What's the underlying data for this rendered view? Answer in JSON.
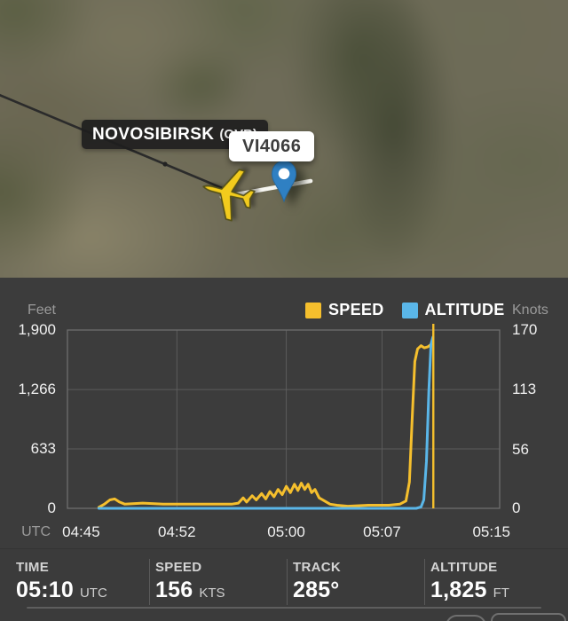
{
  "map": {
    "airport_label": {
      "name": "NOVOSIBIRSK",
      "code": "(OVB)"
    },
    "callsign_label": "VI4066",
    "icons": {
      "aircraft": "yellow-airplane-icon",
      "position_pin": "blue-map-pin-icon"
    },
    "colors": {
      "aircraft_yellow": "#f2cb1d",
      "pin_blue": "#2f80c3",
      "trail_dark": "#2b2b2b",
      "runway_white": "#f7f7f2"
    }
  },
  "chart_data": {
    "type": "line",
    "title": "",
    "x_axis": {
      "title": "UTC",
      "tick_labels": [
        "04:45",
        "04:52",
        "05:00",
        "05:07",
        "05:15"
      ],
      "tick_minutes": [
        0,
        7,
        15,
        22,
        30
      ]
    },
    "x_domain_minutes": [
      -1,
      30.6
    ],
    "left_axis": {
      "title": "Feet",
      "range": [
        0,
        1900
      ],
      "ticks": [
        {
          "value": 1900,
          "label": "1,900"
        },
        {
          "value": 1266,
          "label": "1,266"
        },
        {
          "value": 633,
          "label": "633"
        },
        {
          "value": 0,
          "label": "0"
        }
      ]
    },
    "right_axis": {
      "title": "Knots",
      "range": [
        0,
        170
      ],
      "ticks": [
        {
          "value": 170,
          "label": "170"
        },
        {
          "value": 113,
          "label": "113"
        },
        {
          "value": 56,
          "label": "56"
        },
        {
          "value": 0,
          "label": "0"
        }
      ]
    },
    "grid": {
      "vertical_minutes": [
        7,
        15,
        22
      ],
      "horizontal_feet": [
        633,
        1266
      ]
    },
    "cursor_minute": 25.75,
    "legend_position": "top-right",
    "series": [
      {
        "name": "SPEED",
        "unit": "knots",
        "axis": "right",
        "color": "#f5bf2d",
        "points": [
          [
            1.3,
            1
          ],
          [
            1.7,
            4
          ],
          [
            2.1,
            8
          ],
          [
            2.45,
            9
          ],
          [
            2.8,
            6
          ],
          [
            3.2,
            4
          ],
          [
            4.5,
            5
          ],
          [
            6,
            4
          ],
          [
            8,
            4
          ],
          [
            10,
            4
          ],
          [
            11,
            4
          ],
          [
            11.5,
            5
          ],
          [
            11.85,
            10
          ],
          [
            12.1,
            6
          ],
          [
            12.5,
            12
          ],
          [
            12.8,
            8
          ],
          [
            13.2,
            14
          ],
          [
            13.5,
            9
          ],
          [
            13.8,
            16
          ],
          [
            14.1,
            11
          ],
          [
            14.4,
            18
          ],
          [
            14.7,
            13
          ],
          [
            15.0,
            21
          ],
          [
            15.3,
            15
          ],
          [
            15.6,
            23
          ],
          [
            15.85,
            17
          ],
          [
            16.1,
            24
          ],
          [
            16.35,
            18
          ],
          [
            16.6,
            23
          ],
          [
            16.85,
            15
          ],
          [
            17.1,
            18
          ],
          [
            17.4,
            10
          ],
          [
            17.8,
            7
          ],
          [
            18.2,
            4
          ],
          [
            18.7,
            3
          ],
          [
            19.5,
            2
          ],
          [
            21,
            3
          ],
          [
            22.5,
            3
          ],
          [
            23.3,
            4
          ],
          [
            23.75,
            7
          ],
          [
            24.0,
            25
          ],
          [
            24.2,
            85
          ],
          [
            24.4,
            140
          ],
          [
            24.6,
            152
          ],
          [
            24.85,
            155
          ],
          [
            25.1,
            153
          ],
          [
            25.35,
            154
          ],
          [
            25.65,
            157
          ]
        ]
      },
      {
        "name": "ALTITUDE",
        "unit": "feet",
        "axis": "left",
        "color": "#5ab6e8",
        "points": [
          [
            1.3,
            0
          ],
          [
            5,
            0
          ],
          [
            10,
            0
          ],
          [
            15,
            0
          ],
          [
            20,
            0
          ],
          [
            24.5,
            0
          ],
          [
            24.85,
            15
          ],
          [
            25.05,
            90
          ],
          [
            25.25,
            500
          ],
          [
            25.42,
            1250
          ],
          [
            25.58,
            1750
          ],
          [
            25.72,
            1825
          ]
        ]
      }
    ]
  },
  "info_bar": {
    "cells": [
      {
        "label": "TIME",
        "value": "05:10",
        "unit": "UTC"
      },
      {
        "label": "SPEED",
        "value": "156",
        "unit": "KTS"
      },
      {
        "label": "TRACK",
        "value": "285°",
        "unit": ""
      },
      {
        "label": "ALTITUDE",
        "value": "1,825",
        "unit": "FT"
      }
    ]
  }
}
